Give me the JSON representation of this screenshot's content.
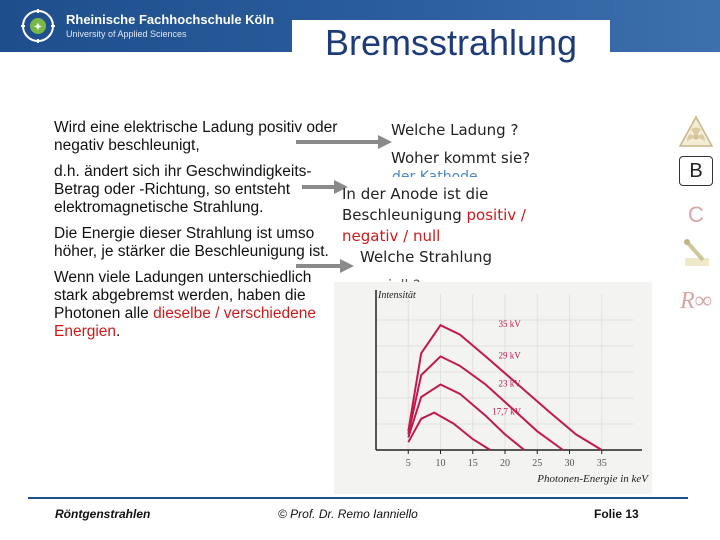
{
  "header": {
    "university_name": "Rheinische Fachhochschule Köln",
    "university_sub": "University of Applied Sciences",
    "title": "Bremsstrahlung"
  },
  "left_text": {
    "p1": "Wird eine elektrische Ladung positiv oder negativ beschleunigt,",
    "p2": "d.h. ändert sich ihr Geschwindigkeits-Betrag oder -Richtung, so entsteht elektromagnetische Strahlung.",
    "p3": "Die Energie dieser Strahlung ist umso höher, je stärker die Beschleunigung ist.",
    "p4_start": "Wenn viele Ladungen unterschiedlich stark abgebremst werden, haben die Photonen alle",
    "p4_red": "dieselbe / verschiedene Energien",
    "p4_end": "."
  },
  "right_text": {
    "q1": "Welche Ladung ?",
    "q2": "Woher  kommt sie?",
    "q2_fragment": "der Kathode",
    "anode_line1": "In der Anode ist die",
    "anode_line2_start": "Beschleunigung",
    "anode_line2_red": "positiv /",
    "anode_line3_red": "negativ / null",
    "q3": "Welche Strahlung",
    "q3_fragment": "speziell ?"
  },
  "side_buttons": {
    "b": "B",
    "c": "C",
    "r": "R∞"
  },
  "chart_data": {
    "type": "line",
    "ylabel": "Intensität",
    "xlabel": "Photonen-Energie in keV",
    "xlim": [
      0,
      40
    ],
    "ylim": [
      0,
      1
    ],
    "x_ticks": [
      5,
      10,
      15,
      20,
      25,
      30,
      35
    ],
    "series": [
      {
        "name": "35 kV",
        "color": "#c21a4a",
        "points": [
          [
            5,
            0.12
          ],
          [
            7,
            0.62
          ],
          [
            10,
            0.8
          ],
          [
            13,
            0.74
          ],
          [
            17,
            0.6
          ],
          [
            22,
            0.42
          ],
          [
            27,
            0.24
          ],
          [
            31,
            0.1
          ],
          [
            35,
            0.0
          ]
        ]
      },
      {
        "name": "29 kV",
        "color": "#c21a4a",
        "points": [
          [
            5,
            0.1
          ],
          [
            7,
            0.48
          ],
          [
            10,
            0.6
          ],
          [
            13,
            0.54
          ],
          [
            17,
            0.42
          ],
          [
            21,
            0.27
          ],
          [
            25,
            0.12
          ],
          [
            29,
            0.0
          ]
        ]
      },
      {
        "name": "23 kV",
        "color": "#c21a4a",
        "points": [
          [
            5,
            0.08
          ],
          [
            7,
            0.34
          ],
          [
            10,
            0.42
          ],
          [
            13,
            0.36
          ],
          [
            17,
            0.22
          ],
          [
            20,
            0.1
          ],
          [
            23,
            0.0
          ]
        ]
      },
      {
        "name": "17,7 kV",
        "color": "#c21a4a",
        "points": [
          [
            5,
            0.05
          ],
          [
            7,
            0.2
          ],
          [
            9,
            0.24
          ],
          [
            12,
            0.17
          ],
          [
            15,
            0.07
          ],
          [
            17.7,
            0.0
          ]
        ]
      }
    ]
  },
  "footer": {
    "left": "Röntgenstrahlen",
    "center": "© Prof. Dr. Remo Ianniello",
    "right": "Folie 13"
  }
}
